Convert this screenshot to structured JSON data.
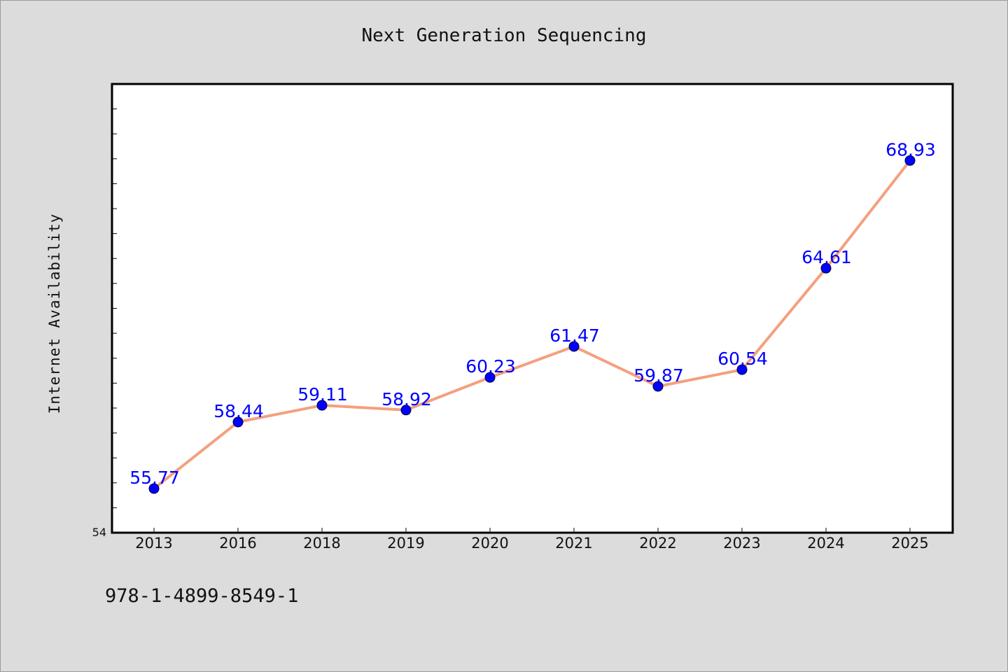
{
  "footer": {
    "isbn": "978-1-4899-8549-1"
  },
  "colors": {
    "background": "#dcdcdc",
    "plot_background": "#ffffff",
    "line": "#f4a07e",
    "marker": "#0000ff",
    "data_label": "#0000ff"
  },
  "chart_data": {
    "type": "line",
    "title": "Next Generation Sequencing",
    "xlabel": "",
    "ylabel": "Internet Availability",
    "categories": [
      "2013",
      "2016",
      "2018",
      "2019",
      "2020",
      "2021",
      "2022",
      "2023",
      "2024",
      "2025"
    ],
    "series": [
      {
        "values": [
          55.77,
          58.44,
          59.11,
          58.92,
          60.23,
          61.47,
          59.87,
          60.54,
          64.61,
          68.93
        ],
        "data_labels": [
          "55.77",
          "58.44",
          "59.11",
          "58.92",
          "60.23",
          "61.47",
          "59.87",
          "60.54",
          "64.61",
          "68.93"
        ]
      }
    ],
    "ylim": [
      54,
      72
    ],
    "y_tick_labels": [
      "54"
    ],
    "grid": false,
    "legend": "none"
  }
}
